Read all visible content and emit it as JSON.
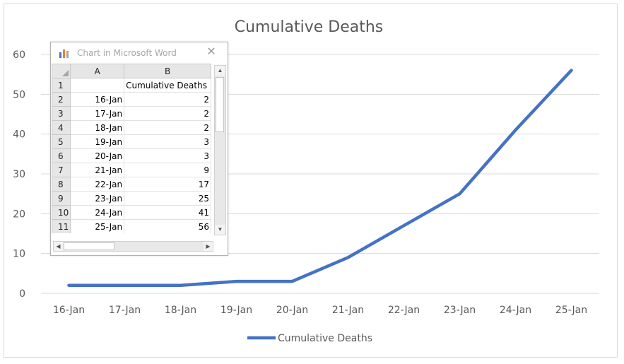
{
  "chart_data": {
    "type": "line",
    "title": "Cumulative Deaths",
    "categories": [
      "16-Jan",
      "17-Jan",
      "18-Jan",
      "19-Jan",
      "20-Jan",
      "21-Jan",
      "22-Jan",
      "23-Jan",
      "24-Jan",
      "25-Jan"
    ],
    "series": [
      {
        "name": "Cumulative Deaths",
        "values": [
          2,
          2,
          2,
          3,
          3,
          9,
          17,
          25,
          41,
          56
        ],
        "color": "#4472c4"
      }
    ],
    "yticks": [
      0,
      10,
      20,
      30,
      40,
      50,
      60
    ],
    "ylim": [
      0,
      60
    ],
    "grid": true,
    "legend": "bottom"
  },
  "sheet": {
    "window_title": "Chart in Microsoft Word",
    "close_glyph": "✕",
    "col_headers": [
      "A",
      "B"
    ],
    "rows": [
      {
        "n": "1",
        "a": "",
        "b": "Cumulative Deaths"
      },
      {
        "n": "2",
        "a": "16-Jan",
        "b": "2"
      },
      {
        "n": "3",
        "a": "17-Jan",
        "b": "2"
      },
      {
        "n": "4",
        "a": "18-Jan",
        "b": "2"
      },
      {
        "n": "5",
        "a": "19-Jan",
        "b": "3"
      },
      {
        "n": "6",
        "a": "20-Jan",
        "b": "3"
      },
      {
        "n": "7",
        "a": "21-Jan",
        "b": "9"
      },
      {
        "n": "8",
        "a": "22-Jan",
        "b": "17"
      },
      {
        "n": "9",
        "a": "23-Jan",
        "b": "25"
      },
      {
        "n": "10",
        "a": "24-Jan",
        "b": "41"
      },
      {
        "n": "11",
        "a": "25-Jan",
        "b": "56"
      }
    ],
    "scroll_up_glyph": "▲",
    "scroll_down_glyph": "▼",
    "scroll_left_glyph": "◀",
    "scroll_right_glyph": "▶",
    "icon": "bar-chart-icon"
  }
}
